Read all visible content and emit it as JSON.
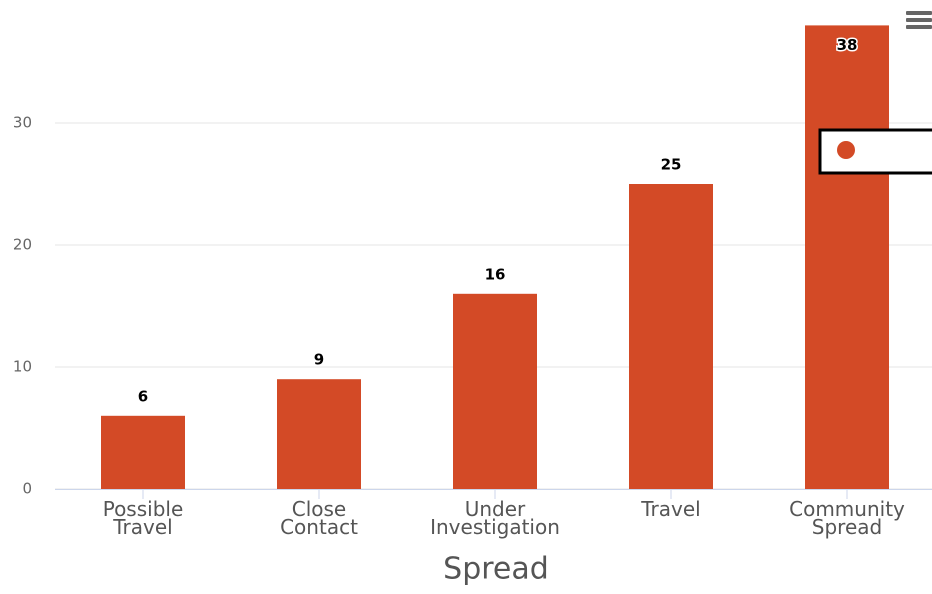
{
  "chart_data": {
    "type": "bar",
    "x_axis_title": "Spread",
    "categories": [
      "Possible Travel",
      "Close Contact",
      "Under Investigation",
      "Travel",
      "Community Spread"
    ],
    "values": [
      6,
      9,
      16,
      25,
      38
    ],
    "color": "#d34a26",
    "ylim": [
      0,
      40
    ],
    "yticks": [
      0,
      10,
      20,
      30
    ],
    "grid": true
  }
}
